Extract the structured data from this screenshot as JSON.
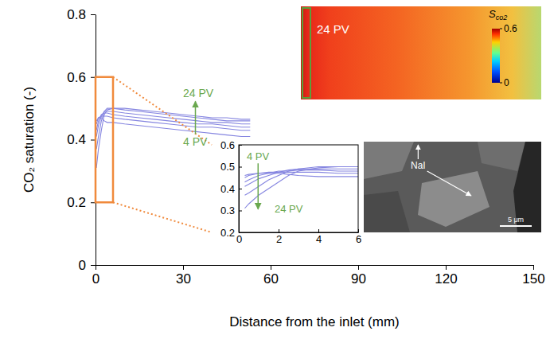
{
  "chart_data": [
    {
      "type": "line",
      "xlabel": "Distance from the inlet (mm)",
      "ylabel": "CO₂ saturation (-)",
      "x": [
        0.3,
        1,
        2,
        3,
        4,
        6,
        10,
        15,
        20,
        25,
        30,
        35,
        40,
        45,
        50,
        53
      ],
      "series": [
        {
          "color": "#8585e0",
          "values": [
            0.46,
            0.47,
            0.47,
            0.46,
            0.455,
            0.455,
            0.45,
            0.445,
            0.44,
            0.435,
            0.43,
            0.425,
            0.42,
            0.415,
            0.41,
            0.41
          ]
        },
        {
          "color": "#8585e0",
          "values": [
            0.45,
            0.47,
            0.475,
            0.475,
            0.475,
            0.47,
            0.465,
            0.46,
            0.455,
            0.45,
            0.445,
            0.44,
            0.44,
            0.435,
            0.43,
            0.43
          ]
        },
        {
          "color": "#8585e0",
          "values": [
            0.43,
            0.46,
            0.48,
            0.485,
            0.485,
            0.48,
            0.475,
            0.47,
            0.465,
            0.46,
            0.455,
            0.45,
            0.45,
            0.445,
            0.44,
            0.44
          ]
        },
        {
          "color": "#8585e0",
          "values": [
            0.41,
            0.445,
            0.475,
            0.49,
            0.49,
            0.49,
            0.485,
            0.48,
            0.475,
            0.47,
            0.465,
            0.46,
            0.455,
            0.455,
            0.45,
            0.45
          ]
        },
        {
          "color": "#8585e0",
          "values": [
            0.37,
            0.41,
            0.46,
            0.49,
            0.5,
            0.5,
            0.495,
            0.49,
            0.485,
            0.48,
            0.475,
            0.47,
            0.465,
            0.46,
            0.46,
            0.46
          ]
        },
        {
          "color": "#8585e0",
          "values": [
            0.31,
            0.37,
            0.43,
            0.48,
            0.495,
            0.5,
            0.5,
            0.495,
            0.49,
            0.485,
            0.48,
            0.475,
            0.47,
            0.47,
            0.465,
            0.465
          ]
        }
      ],
      "xlim": [
        0,
        150
      ],
      "xticks": [
        0,
        30,
        60,
        90,
        120,
        150
      ],
      "ylim": [
        0,
        0.8
      ],
      "yticks": [
        0,
        0.2,
        0.4,
        0.6,
        0.8
      ],
      "annotations": [
        {
          "text": "4 PV",
          "x": 30,
          "y": 0.38,
          "color": "#6aa84f"
        },
        {
          "text": "24 PV",
          "x": 30,
          "y": 0.535,
          "color": "#6aa84f"
        }
      ]
    },
    {
      "type": "line",
      "x": [
        0.3,
        0.5,
        1,
        1.5,
        2,
        2.5,
        3,
        4,
        5,
        6
      ],
      "series": [
        {
          "color": "#8585e0",
          "values": [
            0.46,
            0.465,
            0.47,
            0.47,
            0.47,
            0.465,
            0.46,
            0.455,
            0.455,
            0.455
          ]
        },
        {
          "color": "#8585e0",
          "values": [
            0.45,
            0.46,
            0.47,
            0.475,
            0.475,
            0.475,
            0.475,
            0.475,
            0.47,
            0.47
          ]
        },
        {
          "color": "#8585e0",
          "values": [
            0.43,
            0.44,
            0.46,
            0.47,
            0.48,
            0.48,
            0.485,
            0.485,
            0.48,
            0.48
          ]
        },
        {
          "color": "#8585e0",
          "values": [
            0.41,
            0.42,
            0.445,
            0.46,
            0.475,
            0.485,
            0.49,
            0.49,
            0.49,
            0.49
          ]
        },
        {
          "color": "#8585e0",
          "values": [
            0.37,
            0.38,
            0.41,
            0.44,
            0.46,
            0.48,
            0.49,
            0.5,
            0.5,
            0.5
          ]
        },
        {
          "color": "#8585e0",
          "values": [
            0.31,
            0.33,
            0.37,
            0.4,
            0.43,
            0.46,
            0.48,
            0.495,
            0.5,
            0.5
          ]
        }
      ],
      "xlim": [
        0,
        6
      ],
      "xticks": [
        0,
        2,
        4,
        6
      ],
      "ylim": [
        0.2,
        0.6
      ],
      "yticks": [
        0.2,
        0.3,
        0.4,
        0.5,
        0.6
      ],
      "annotations": [
        {
          "text": "4 PV",
          "x": 0.4,
          "y": 0.53,
          "color": "#6aa84f"
        },
        {
          "text": "24 PV",
          "x": 1.8,
          "y": 0.29,
          "color": "#6aa84f"
        }
      ]
    }
  ],
  "map_image": {
    "label": "24 PV",
    "colorbar_title": "Sco2",
    "colorbar_lim": [
      0,
      0.6
    ],
    "colorbar_ticks": [
      0,
      0.6
    ]
  },
  "sem_image": {
    "label": "NaI",
    "scale_bar": "5 μm"
  }
}
